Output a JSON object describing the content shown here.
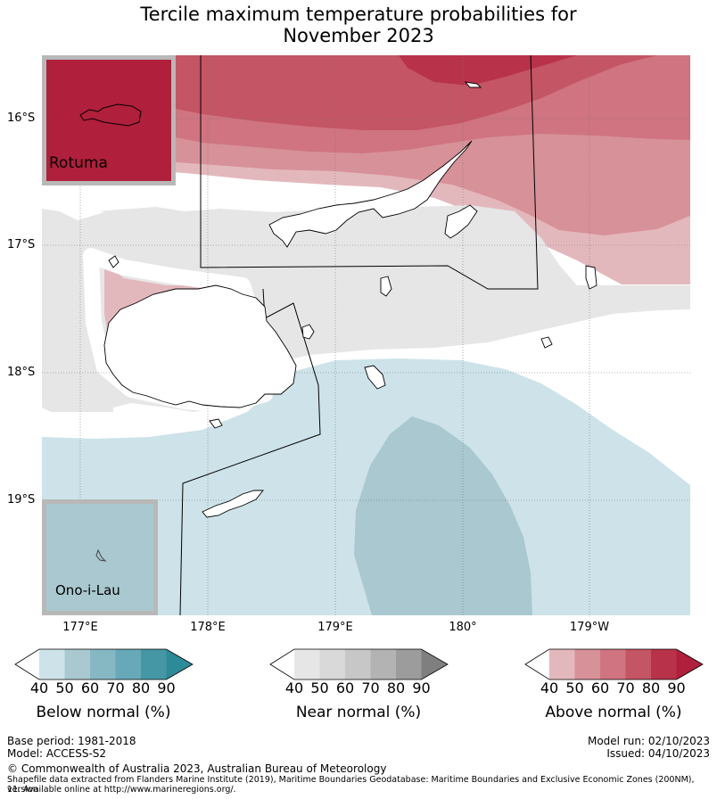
{
  "title_line1": "Tercile maximum temperature probabilities for",
  "title_line2": "November 2023",
  "lat_labels": [
    "16°S",
    "17°S",
    "18°S",
    "19°S"
  ],
  "lon_labels": [
    "177°E",
    "178°E",
    "179°E",
    "180°",
    "179°W"
  ],
  "insets": {
    "top": "Rotuma",
    "bottom": "Ono-i-Lau"
  },
  "colorbars": [
    {
      "title": "Below normal (%)",
      "ticks": [
        "40",
        "50",
        "60",
        "70",
        "80",
        "90"
      ],
      "colors": [
        "#cde3e9",
        "#a9c8cf",
        "#86b8c3",
        "#67a9b8",
        "#4597a6",
        "#2d8a98"
      ]
    },
    {
      "title": "Near normal (%)",
      "ticks": [
        "40",
        "50",
        "60",
        "70",
        "80",
        "90"
      ],
      "colors": [
        "#e6e6e6",
        "#d9d9d9",
        "#c7c7c7",
        "#b3b3b3",
        "#9c9c9c",
        "#7f7f7f"
      ]
    },
    {
      "title": "Above normal (%)",
      "ticks": [
        "40",
        "50",
        "60",
        "70",
        "80",
        "90"
      ],
      "colors": [
        "#e3b8bd",
        "#d79198",
        "#cf7480",
        "#c45564",
        "#b8324a",
        "#b01f3b"
      ]
    }
  ],
  "footer": {
    "base_period": "Base period: 1981-2018",
    "model": "Model: ACCESS-S2",
    "model_run": "Model run: 02/10/2023",
    "issued": "Issued: 04/10/2023",
    "copyright": "© Commonwealth of Australia 2023, Australian Bureau of Meteorology",
    "shapefile_line1": "Shapefile data extracted from Flanders Marine Institute (2019), Maritime Boundaries Geodatabase: Maritime Boundaries and Exclusive Economic Zones (200NM), version",
    "shapefile_line2": "11. Available online at http://www.marineregions.org/."
  },
  "colors": {
    "above_40": "#e3b8bd",
    "above_50": "#d79198",
    "above_60": "#cf7480",
    "above_70": "#c45564",
    "near_40": "#e6e6e6",
    "below_40": "#cde3e9",
    "below_50": "#a9c8cf"
  }
}
